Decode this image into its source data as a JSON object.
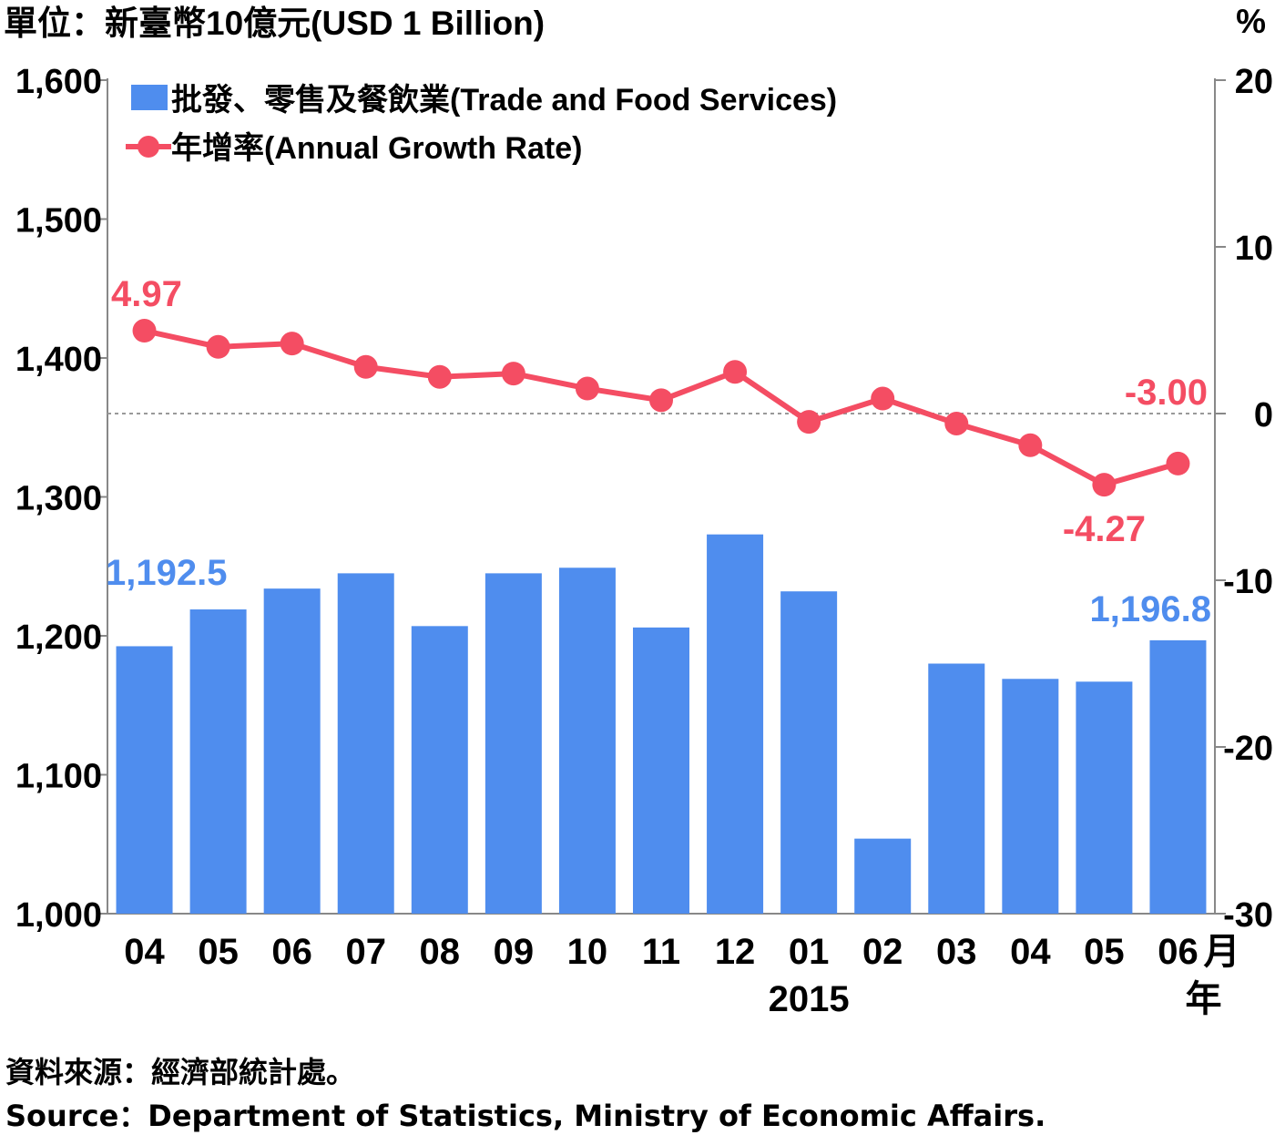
{
  "chart_data": {
    "type": "bar",
    "unit_left": "單位：新臺幣10億元(USD 1 Billion)",
    "unit_right": "%",
    "categories": [
      "04",
      "05",
      "06",
      "07",
      "08",
      "09",
      "10",
      "11",
      "12",
      "01",
      "02",
      "03",
      "04",
      "05",
      "06"
    ],
    "month_suffix": "月",
    "year_label": "2015",
    "year_suffix": "年",
    "series": [
      {
        "name": "批發、零售及餐飲業(Trade and Food Services)",
        "axis": "left",
        "type": "bar",
        "color": "#4f8dee",
        "values": [
          1192.5,
          1219,
          1234,
          1245,
          1207,
          1245,
          1249,
          1206,
          1273,
          1232,
          1054,
          1180,
          1169,
          1167,
          1196.8
        ]
      },
      {
        "name": "年增率(Annual Growth Rate)",
        "axis": "right",
        "type": "line",
        "color": "#f44d63",
        "values": [
          4.97,
          4.0,
          4.2,
          2.8,
          2.2,
          2.4,
          1.5,
          0.8,
          2.5,
          -0.5,
          0.9,
          -0.6,
          -1.9,
          -4.27,
          -3.0
        ]
      }
    ],
    "left_axis": {
      "ylim": [
        1000,
        1600
      ],
      "ticks": [
        "1,000",
        "1,100",
        "1,200",
        "1,300",
        "1,400",
        "1,500",
        "1,600"
      ]
    },
    "right_axis": {
      "ylim": [
        -30,
        20
      ],
      "ticks": [
        "-30",
        "-20",
        "-10",
        "0",
        "10",
        "20"
      ]
    },
    "annotations": {
      "bar_first": "1,192.5",
      "bar_last": "1,196.8",
      "line_first": "4.97",
      "line_min": "-4.27",
      "line_last": "-3.00"
    },
    "zero_line": true,
    "legend_position": "top-left"
  },
  "source": {
    "zh": "資料來源：經濟部統計處。",
    "en": "Source：Department of Statistics, Ministry of Economic Affairs."
  }
}
